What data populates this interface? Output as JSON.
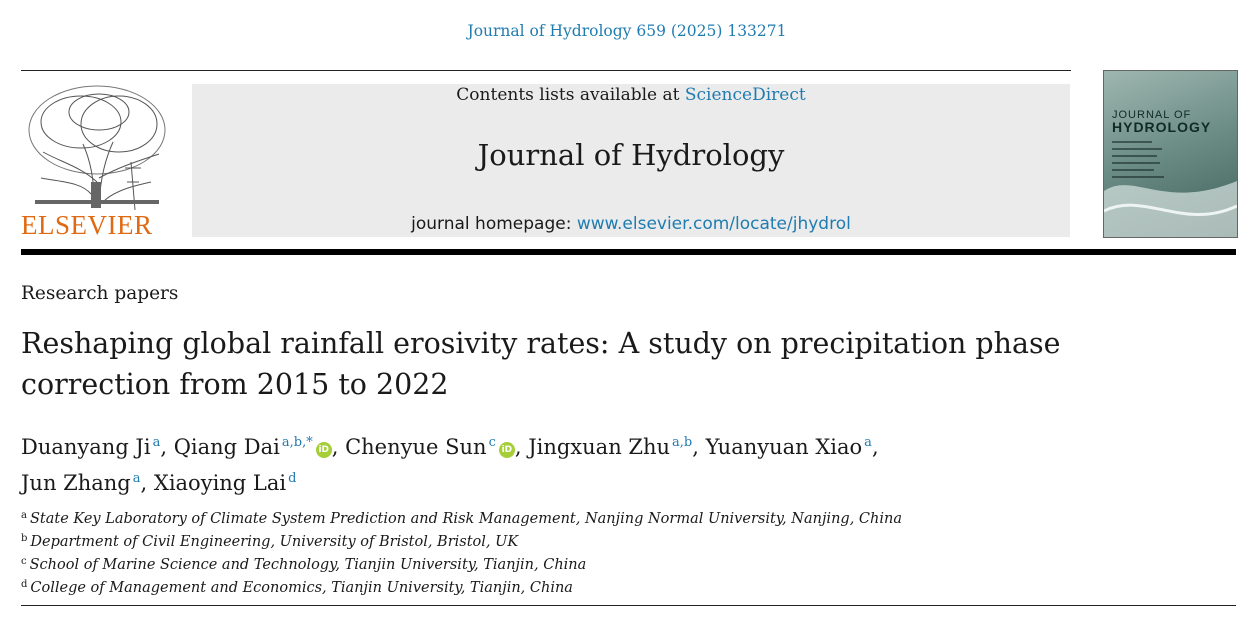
{
  "journal_ref": "Journal of Hydrology 659 (2025) 133271",
  "publisher_logo_text": "ELSEVIER",
  "banner": {
    "contents_prefix": "Contents lists available at ",
    "contents_link": "ScienceDirect",
    "journal_name": "Journal of Hydrology",
    "homepage_prefix": "journal homepage: ",
    "homepage_link": "www.elsevier.com/locate/jhydrol"
  },
  "cover": {
    "line1": "JOURNAL OF",
    "line2": "HYDROLOGY"
  },
  "article_type": "Research papers",
  "title_line1": "Reshaping global rainfall erosivity rates: A study on precipitation phase",
  "title_line2": "correction from 2015 to 2022",
  "authors": [
    {
      "name": "Duanyang Ji",
      "sup": "a",
      "orcid": false,
      "sep": ", "
    },
    {
      "name": "Qiang Dai",
      "sup": "a,b,*",
      "orcid": true,
      "sep": ", "
    },
    {
      "name": "Chenyue Sun",
      "sup": "c",
      "orcid": true,
      "sep": ", "
    },
    {
      "name": "Jingxuan Zhu",
      "sup": "a,b",
      "orcid": false,
      "sep": ", "
    },
    {
      "name": "Yuanyuan Xiao",
      "sup": "a",
      "orcid": false,
      "sep": ","
    },
    {
      "name": "Jun Zhang",
      "sup": "a",
      "orcid": false,
      "sep": ", "
    },
    {
      "name": "Xiaoying Lai",
      "sup": "d",
      "orcid": false,
      "sep": ""
    }
  ],
  "orcid_glyph": "iD",
  "affiliations": [
    {
      "label": "a",
      "text": "State Key Laboratory of Climate System Prediction and Risk Management, Nanjing Normal University, Nanjing, China"
    },
    {
      "label": "b",
      "text": "Department of Civil Engineering, University of Bristol, Bristol, UK"
    },
    {
      "label": "c",
      "text": "School of Marine Science and Technology, Tianjin University, Tianjin, China"
    },
    {
      "label": "d",
      "text": "College of Management and Economics, Tianjin University, Tianjin, China"
    }
  ],
  "colors": {
    "link": "#1f7bb0",
    "elsevier_orange": "#e06a13",
    "banner_bg": "#ebebeb",
    "orcid_green": "#a6ce39"
  }
}
